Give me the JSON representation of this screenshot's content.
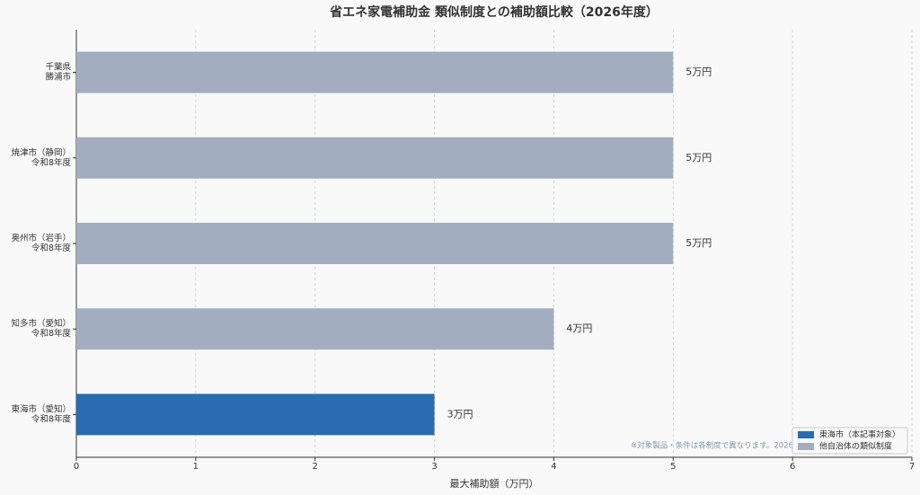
{
  "chart_data": {
    "type": "hbar",
    "title": "省エネ家電補助金 類似制度との補助額比較（2026年度）",
    "xlabel": "最大補助額（万円）",
    "categories": [
      [
        "千葉県",
        "勝浦市"
      ],
      [
        "焼津市（静岡）",
        "令和8年度"
      ],
      [
        "奥州市（岩手）",
        "令和8年度"
      ],
      [
        "知多市（愛知）",
        "令和8年度"
      ],
      [
        "東海市（愛知）",
        "令和8年度"
      ]
    ],
    "series": [
      {
        "name": "東海市（本記事対象）",
        "color": "#2b6cb0",
        "values": [
          null,
          null,
          null,
          null,
          3
        ],
        "value_labels": [
          null,
          null,
          null,
          null,
          "3万円"
        ]
      },
      {
        "name": "他自治体の類似制度",
        "color": "#a2aec0",
        "values": [
          5,
          5,
          5,
          4,
          null
        ],
        "value_labels": [
          "5万円",
          "5万円",
          "5万円",
          "4万円",
          null
        ]
      }
    ],
    "xlim": [
      0,
      7
    ],
    "xticks": [
      0,
      1,
      2,
      3,
      4,
      5,
      6,
      7
    ],
    "grid": true,
    "legend": "lower right",
    "note": "※対象製品・条件は各制度で異なります。2026"
  }
}
